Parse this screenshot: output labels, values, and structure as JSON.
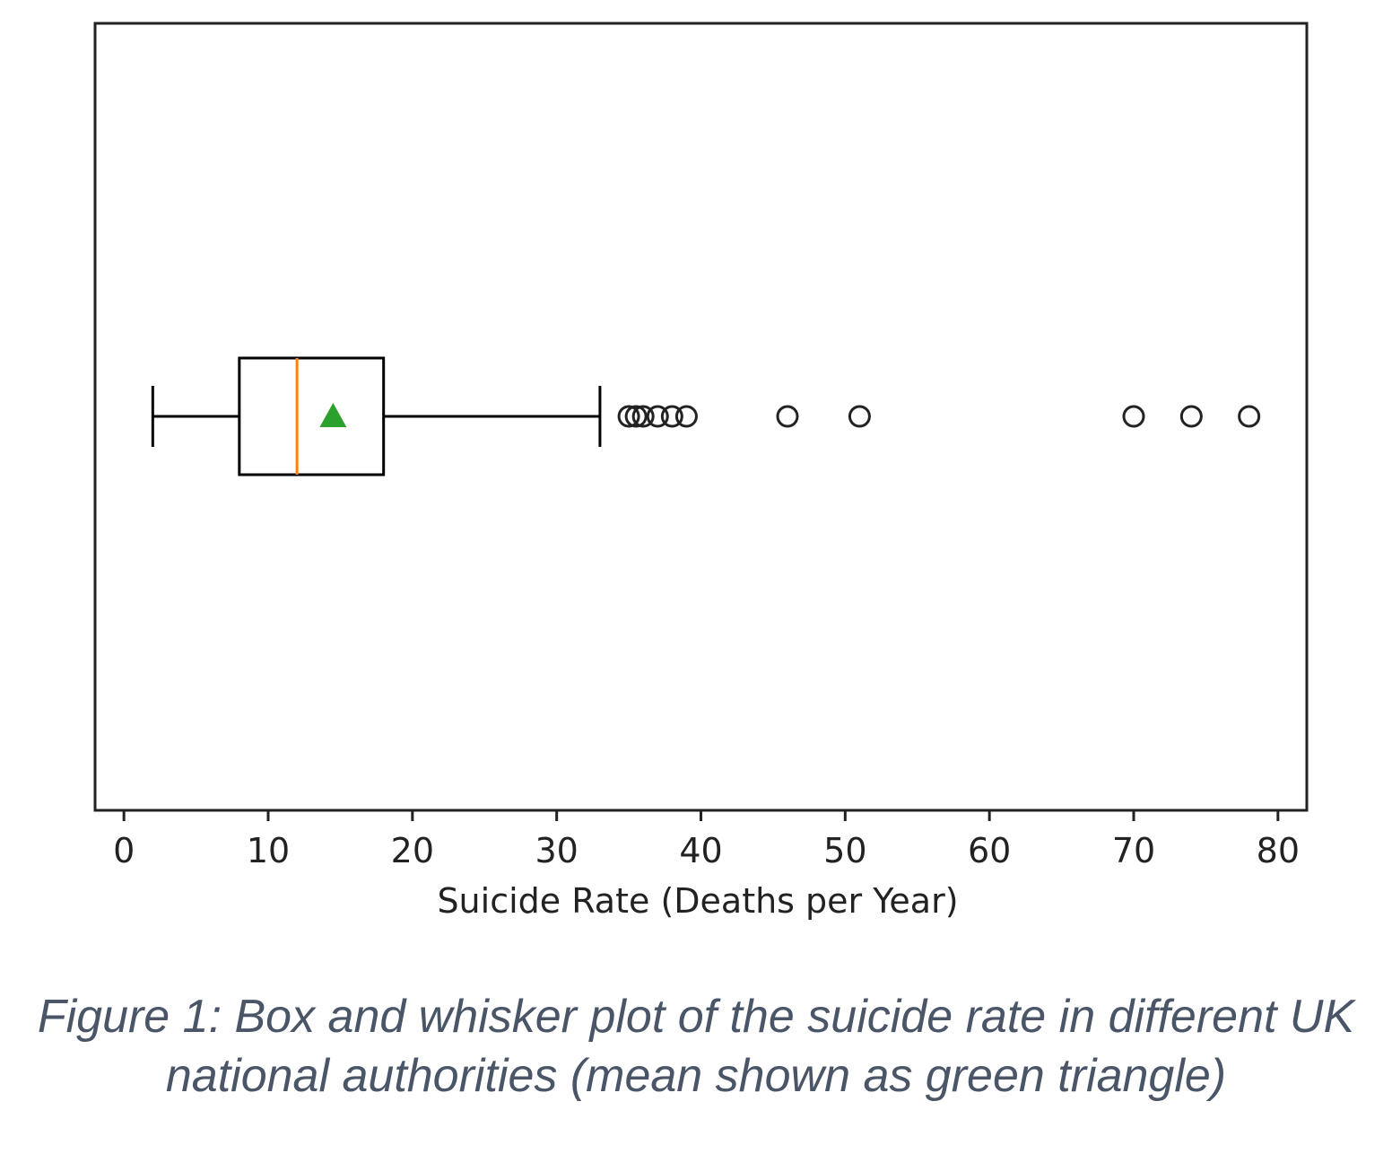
{
  "chart_data": {
    "type": "boxplot",
    "orientation": "horizontal",
    "xlabel": "Suicide Rate (Deaths per Year)",
    "xlim": [
      -2,
      82
    ],
    "xticks": [
      0,
      10,
      20,
      30,
      40,
      50,
      60,
      70,
      80
    ],
    "whisker_low": 2,
    "q1": 8,
    "median": 12,
    "mean": 14.5,
    "q3": 18,
    "whisker_high": 33,
    "outliers": [
      35,
      35.5,
      36,
      37,
      38,
      39,
      46,
      51,
      70,
      74,
      78
    ],
    "colors": {
      "box": "#000000",
      "median": "#ff7f0e",
      "mean": "#2ca02c"
    },
    "mean_marker": "triangle",
    "outlier_marker": "circle"
  },
  "caption": {
    "line1": "Figure 1: Box and whisker plot of the suicide rate in different UK",
    "line2": "national authorities (mean shown as green triangle)"
  }
}
